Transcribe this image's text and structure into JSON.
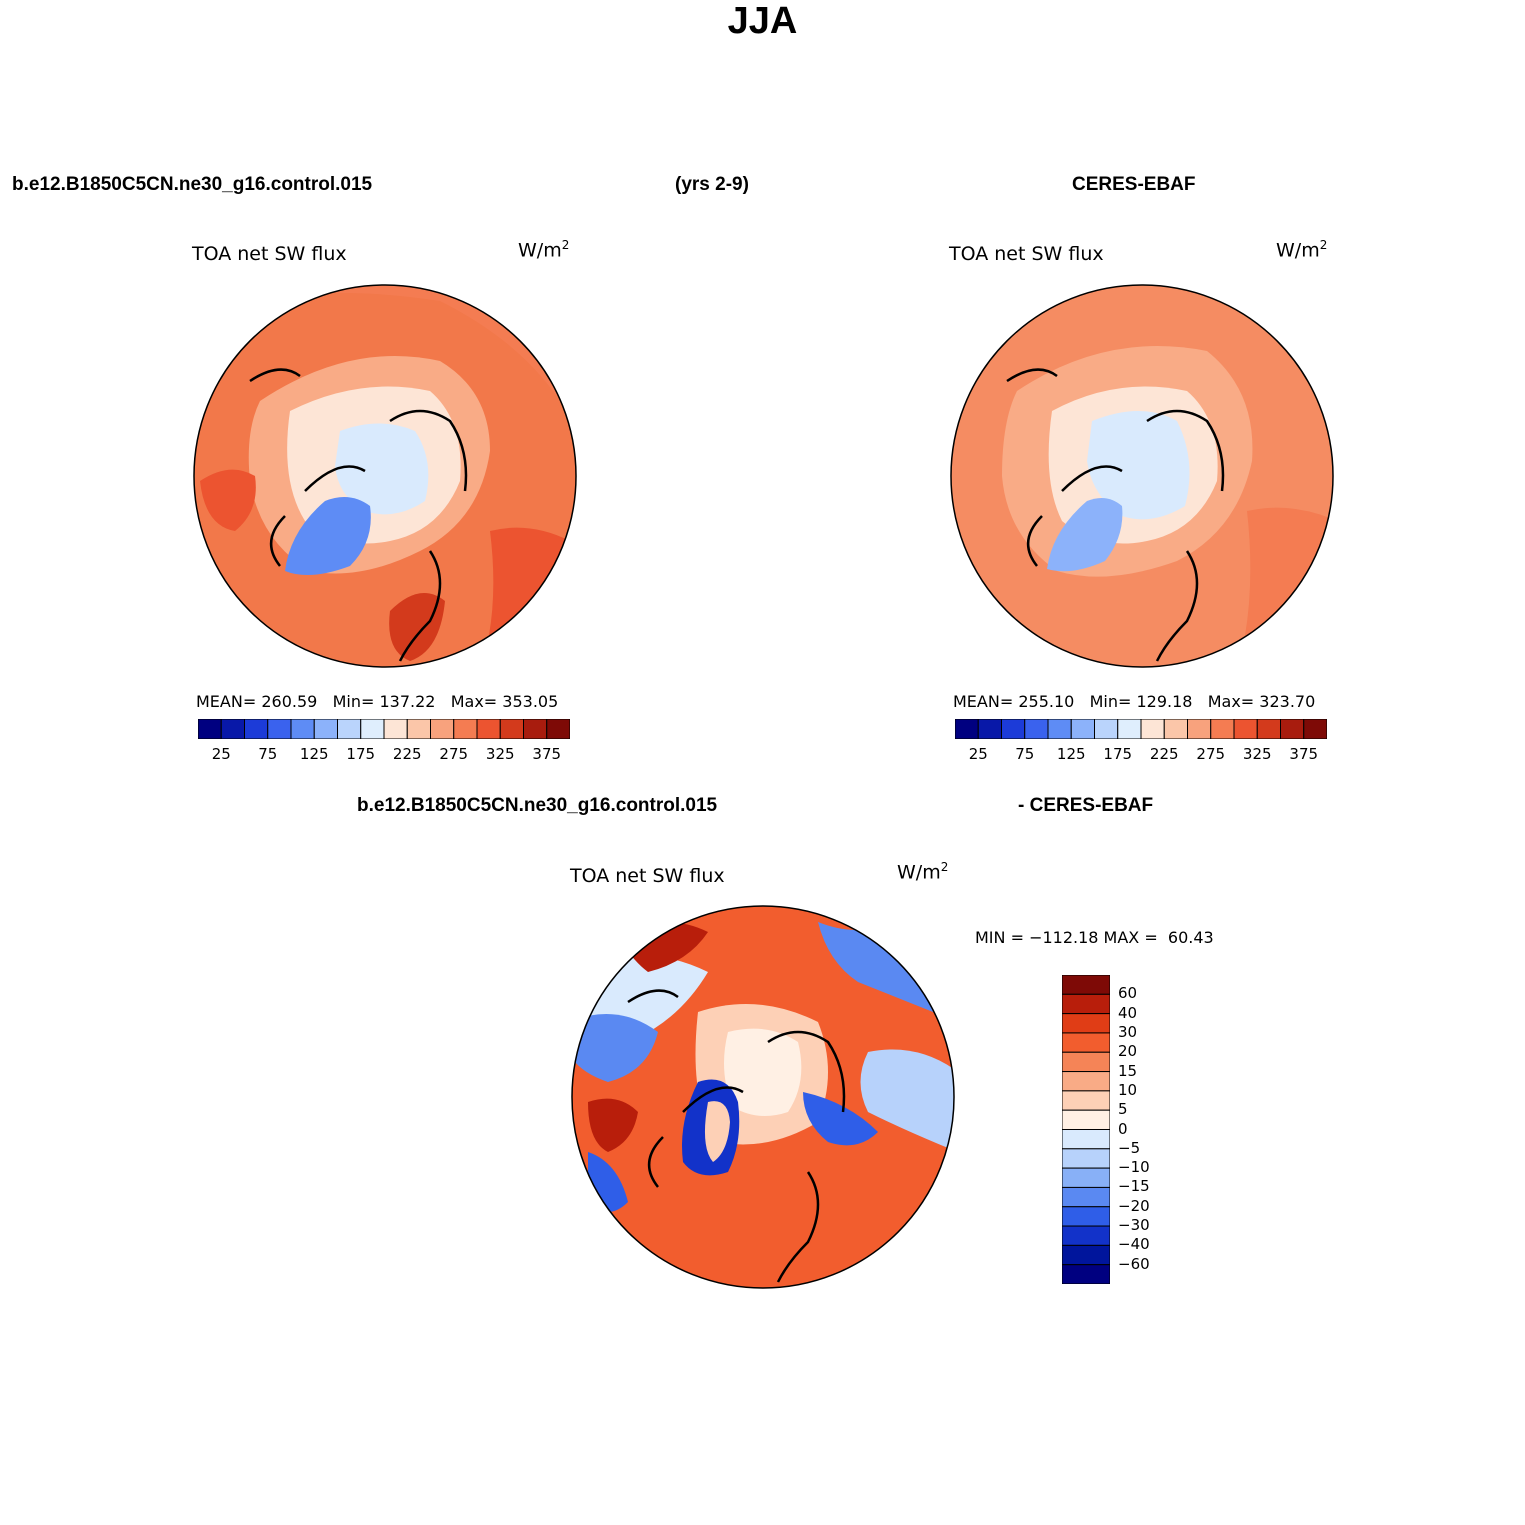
{
  "figure": {
    "title": "JJA",
    "model_case": "b.e12.B1850C5CN.ne30_g16.control.015",
    "years": "(yrs 2-9)",
    "obs_case": "CERES-EBAF",
    "diff_left": "b.e12.B1850C5CN.ne30_g16.control.015",
    "diff_right": "- CERES-EBAF"
  },
  "panels": {
    "model": {
      "title": "TOA net SW flux",
      "units": "W/m",
      "units_sup": "2",
      "mean_label": "MEAN=",
      "mean": "260.59",
      "min_label": "Min=",
      "min": "137.22",
      "max_label": "Max=",
      "max": "353.05"
    },
    "obs": {
      "title": "TOA net SW flux",
      "units": "W/m",
      "units_sup": "2",
      "mean_label": "MEAN=",
      "mean": "255.10",
      "min_label": "Min=",
      "min": "129.18",
      "max_label": "Max=",
      "max": "323.70"
    },
    "diff": {
      "title": "TOA net SW flux",
      "units": "W/m",
      "units_sup": "2",
      "minmax": "MIN = −112.18 MAX =  60.43"
    }
  },
  "colorbars": {
    "abs_colors": [
      "#000080",
      "#0818a8",
      "#1c3bd8",
      "#3a62ee",
      "#5e8cf5",
      "#8cb2fa",
      "#bad4fc",
      "#dfeefd",
      "#fde5d6",
      "#fbc6a9",
      "#f8a27d",
      "#f47c52",
      "#ec5430",
      "#d33a1c",
      "#a81c0e",
      "#7e0a06"
    ],
    "abs_ticks": [
      "25",
      "75",
      "125",
      "175",
      "225",
      "275",
      "325",
      "375"
    ],
    "diff_colors": [
      "#7e0a06",
      "#b81e0b",
      "#e03d16",
      "#f25d2e",
      "#f58457",
      "#f9ab86",
      "#fdd0b6",
      "#fff0e4",
      "#d9eafd",
      "#b7d2fb",
      "#88b0f7",
      "#5a89f2",
      "#2f5ee8",
      "#1232c9",
      "#00159c",
      "#000080"
    ],
    "diff_ticks": [
      "60",
      "40",
      "30",
      "20",
      "15",
      "10",
      "5",
      "0",
      "−5",
      "−10",
      "−15",
      "−20",
      "−30",
      "−40",
      "−60"
    ]
  },
  "map_colors": {
    "ocean_model": "#f2784a",
    "ocean_obs": "#f58c62",
    "ring_light": "#f9ab86",
    "arctic_ice": "#d9eafd",
    "greenland": "#5e8cf5",
    "diff_base": "#f25d2e",
    "diff_neg": "#5a89f2",
    "diff_light": "#fdd0b6"
  }
}
